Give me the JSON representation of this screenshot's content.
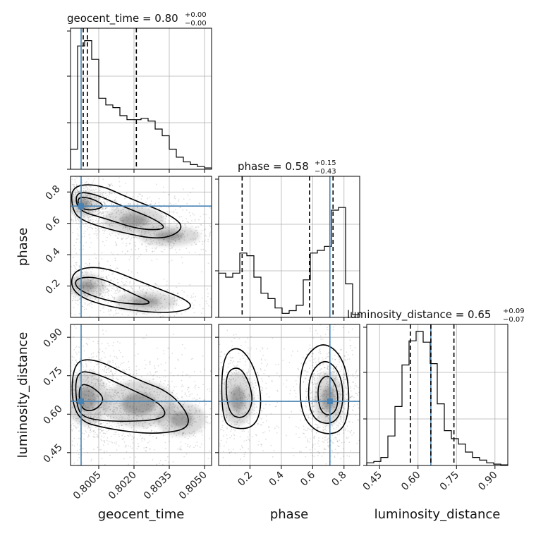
{
  "chart_data": {
    "type": "corner",
    "parameters": [
      {
        "name": "geocent_time",
        "label": "geocent_time",
        "title": "geocent_time = 0.80",
        "title_upper": "+0.00",
        "title_lower": "−0.00",
        "range": [
          0.7993,
          0.8053
        ],
        "ticks": [
          0.8005,
          0.802,
          0.8035,
          0.805
        ],
        "tick_labels": [
          "0.8005",
          "0.8020",
          "0.8035",
          "0.8050"
        ],
        "truth": 0.79975,
        "quantiles": [
          0.79984,
          0.80002,
          0.8021
        ],
        "hist": [
          0.15,
          0.92,
          0.96,
          0.82,
          0.53,
          0.48,
          0.46,
          0.4,
          0.37,
          0.37,
          0.38,
          0.36,
          0.3,
          0.25,
          0.15,
          0.09,
          0.055,
          0.035,
          0.02,
          0.01
        ]
      },
      {
        "name": "phase",
        "label": "phase",
        "title": "phase = 0.58",
        "title_upper": "+0.15",
        "title_lower": "−0.43",
        "range": [
          0.0,
          0.9
        ],
        "ticks": [
          0.2,
          0.4,
          0.6,
          0.8
        ],
        "tick_labels": [
          "0.2",
          "0.4",
          "0.6",
          "0.8"
        ],
        "truth": 0.71,
        "quantiles": [
          0.15,
          0.58,
          0.73
        ],
        "hist": [
          0.33,
          0.3,
          0.33,
          0.48,
          0.46,
          0.3,
          0.18,
          0.14,
          0.07,
          0.03,
          0.05,
          0.09,
          0.28,
          0.48,
          0.5,
          0.53,
          0.8,
          0.82,
          0.25,
          0.02
        ]
      },
      {
        "name": "luminosity_distance",
        "label": "luminosity_distance",
        "title": "luminosity_distance = 0.65",
        "title_upper": "+0.09",
        "title_lower": "−0.07",
        "range": [
          0.4,
          0.95
        ],
        "ticks": [
          0.45,
          0.6,
          0.75,
          0.9
        ],
        "tick_labels": [
          "0.45",
          "0.60",
          "0.75",
          "0.90"
        ],
        "truth": 0.65,
        "quantiles": [
          0.57,
          0.65,
          0.74
        ],
        "hist": [
          0.02,
          0.03,
          0.06,
          0.22,
          0.44,
          0.75,
          0.93,
          1.0,
          0.92,
          0.76,
          0.46,
          0.26,
          0.2,
          0.16,
          0.1,
          0.06,
          0.04,
          0.02,
          0.01,
          0.005
        ]
      }
    ],
    "truth_color": "#4682b4",
    "grid": true
  }
}
